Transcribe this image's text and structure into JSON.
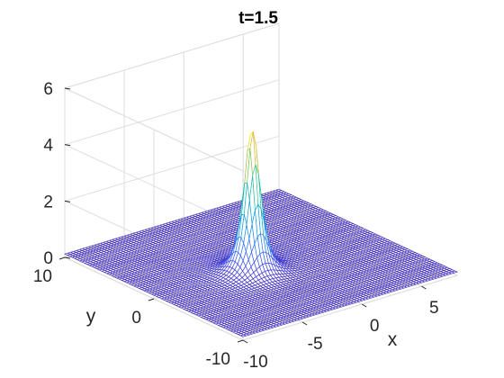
{
  "chart_data": {
    "type": "surface",
    "title": "t=1.5",
    "xlabel": "x",
    "ylabel": "y",
    "zlabel": "",
    "xlim": [
      -10,
      8
    ],
    "ylim": [
      -10,
      10
    ],
    "zlim": [
      0,
      6
    ],
    "x_ticks": [
      -10,
      -5,
      0,
      5
    ],
    "y_ticks": [
      -10,
      0,
      10
    ],
    "z_ticks": [
      0,
      2,
      4,
      6
    ],
    "grid": true,
    "colormap": "parula",
    "grid_resolution": 72,
    "peak": {
      "x": -2.5,
      "y": -1.0,
      "z": 5.3
    },
    "background_level": 0.12,
    "surface_function": "z = 0.12 + 5.18 / (1 + ((x+2.5)/0.9)^2 + ((y+1)/0.9)^2)^1.6 (lump soliton peak)",
    "colors": {
      "low": "#3e26a8",
      "mid": "#16b5c6",
      "high": "#f9fb0e"
    }
  }
}
